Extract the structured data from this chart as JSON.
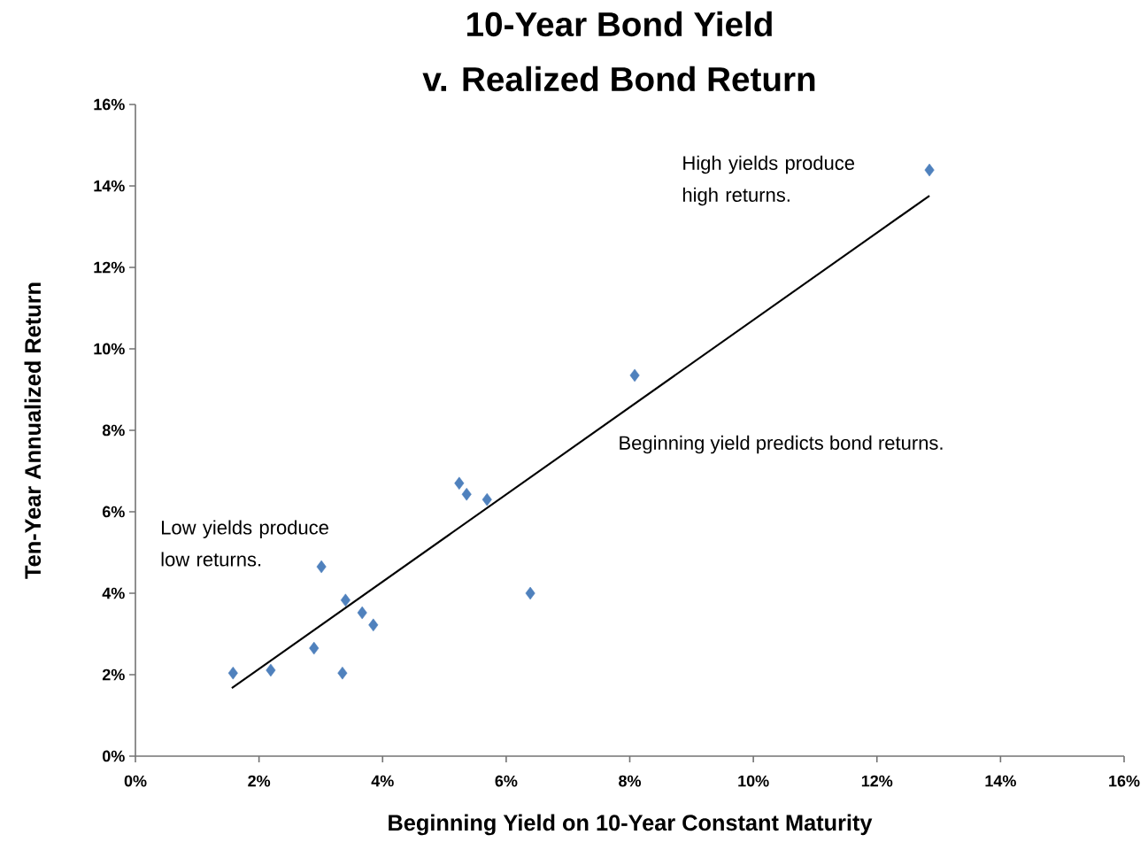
{
  "chart_data": {
    "type": "scatter",
    "title": "10-Year Bond Yield",
    "subtitle": "v. Realized Bond Return",
    "xlabel": "Beginning Yield on 10-Year Constant Maturity",
    "ylabel": "Ten-Year Annualized Return",
    "series": [
      {
        "color": "#4f81bd",
        "marker": "diamond",
        "x": [
          1.58,
          2.19,
          2.89,
          3.35,
          3.01,
          3.4,
          3.67,
          3.85,
          5.24,
          5.36,
          5.69,
          6.39,
          8.08,
          12.85
        ],
        "values": [
          2.04,
          2.11,
          2.65,
          2.04,
          4.65,
          3.83,
          3.52,
          3.22,
          6.7,
          6.43,
          6.3,
          4.0,
          9.35,
          14.39
        ]
      },
      {
        "type": "line",
        "color": "#000000",
        "marker": "none",
        "line_style": "solid",
        "x": [
          1.56,
          12.85
        ],
        "values": [
          1.67,
          13.76
        ]
      }
    ],
    "xlim": [
      0,
      16
    ],
    "ylim": [
      0,
      16
    ],
    "xticks": [
      {
        "value": 0,
        "label": "0%"
      },
      {
        "value": 2,
        "label": "2%"
      },
      {
        "value": 4,
        "label": "4%"
      },
      {
        "value": 6,
        "label": "6%"
      },
      {
        "value": 8,
        "label": "8%"
      },
      {
        "value": 10,
        "label": "10%"
      },
      {
        "value": 12,
        "label": "12%"
      },
      {
        "value": 14,
        "label": "14%"
      },
      {
        "value": 16,
        "label": "16%"
      }
    ],
    "yticks": [
      {
        "value": 0,
        "label": "0%"
      },
      {
        "value": 2,
        "label": "2%"
      },
      {
        "value": 4,
        "label": "4%"
      },
      {
        "value": 6,
        "label": "6%"
      },
      {
        "value": 8,
        "label": "8%"
      },
      {
        "value": 10,
        "label": "10%"
      },
      {
        "value": 12,
        "label": "12%"
      },
      {
        "value": 14,
        "label": "14%"
      },
      {
        "value": 16,
        "label": "16%"
      }
    ],
    "grid": false,
    "annotations": [
      "High yields produce high returns.",
      "Beginning yield predicts bond returns.",
      "Low yields produce low returns."
    ]
  }
}
